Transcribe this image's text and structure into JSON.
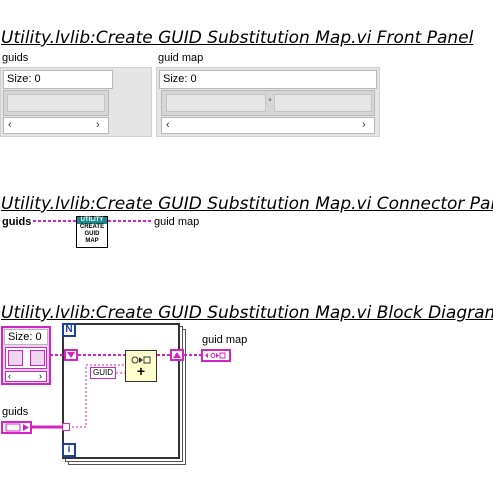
{
  "front_panel": {
    "heading": "Utility.lvlib:Create GUID Substitution Map.vi Front Panel",
    "guids": {
      "label": "guids",
      "size_text": "Size: 0"
    },
    "guid_map": {
      "label": "guid map",
      "size_text": "Size: 0"
    }
  },
  "connector_pane": {
    "heading": "Utility.lvlib:Create GUID Substitution Map.vi Connector Pane",
    "input_label": "guids",
    "output_label": "guid map",
    "icon": {
      "top": "UTILITY",
      "line1": "CREATE",
      "line2": "GUID",
      "line3": "MAP"
    }
  },
  "block_diagram": {
    "heading": "Utility.lvlib:Create GUID Substitution Map.vi Block Diagram",
    "constant_size_text": "Size: 0",
    "output_label": "guid map",
    "input_label": "guids",
    "loop_count": "N",
    "loop_index": "i",
    "guid_constant": "GUID",
    "insert_symbol": "+"
  },
  "colors": {
    "wire_pink": "#d424c4",
    "map_yellow": "#ffffcc",
    "icon_teal": "#1a8a8a"
  }
}
